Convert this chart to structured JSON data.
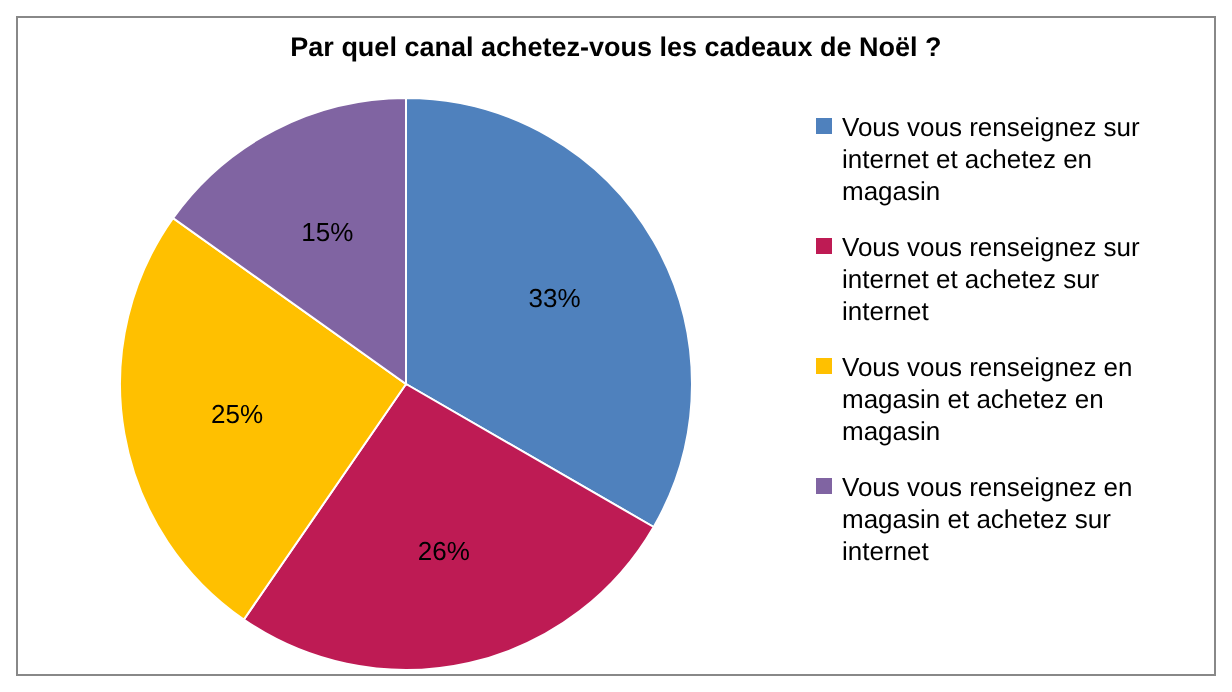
{
  "chart_data": {
    "type": "pie",
    "title": "Par quel canal  achetez-vous les cadeaux  de Noël ?",
    "categories": [
      "Vous vous renseignez sur internet et achetez en magasin",
      "Vous vous renseignez sur internet et achetez sur internet",
      "Vous vous renseignez en magasin et achetez en magasin",
      "Vous vous renseignez en magasin et achetez sur internet"
    ],
    "values": [
      33,
      26,
      25,
      15
    ],
    "colors": [
      "#4f81bd",
      "#be1b54",
      "#ffc000",
      "#8064a2"
    ],
    "value_labels": [
      "33%",
      "26%",
      "25%",
      "15%"
    ],
    "legend": "right"
  }
}
